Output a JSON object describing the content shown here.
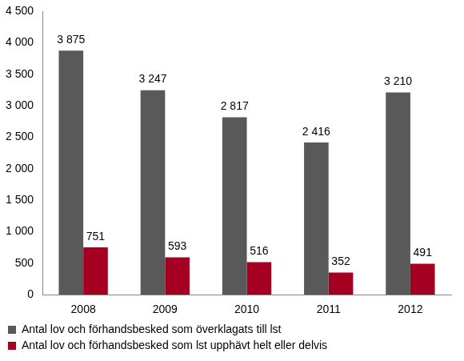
{
  "chart_data": {
    "type": "bar",
    "categories": [
      "2008",
      "2009",
      "2010",
      "2011",
      "2012"
    ],
    "series": [
      {
        "name": "Antal lov och förhandsbesked som överklagats till lst",
        "color": "#595959",
        "values": [
          3875,
          3247,
          2817,
          2416,
          3210
        ],
        "value_labels": [
          "3 875",
          "3 247",
          "2 817",
          "2 416",
          "3 210"
        ]
      },
      {
        "name": "Antal lov och förhandsbesked som lst upphävt helt eller delvis",
        "color": "#a50021",
        "values": [
          751,
          593,
          516,
          352,
          491
        ],
        "value_labels": [
          "751",
          "593",
          "516",
          "352",
          "491"
        ]
      }
    ],
    "ylim": [
      0,
      4500
    ],
    "yticks": [
      0,
      500,
      {
        "value": 1000,
        "label": "1 000"
      },
      {
        "value": 1500,
        "label": "1 500"
      },
      {
        "value": 2000,
        "label": "2 000"
      },
      {
        "value": 2500,
        "label": "2 500"
      },
      {
        "value": 3000,
        "label": "3 000"
      },
      {
        "value": 3500,
        "label": "3 500"
      },
      {
        "value": 4000,
        "label": "4 000"
      },
      {
        "value": 4500,
        "label": "4 500"
      }
    ],
    "grid": false,
    "legend": "bottom",
    "data_labels": true
  }
}
